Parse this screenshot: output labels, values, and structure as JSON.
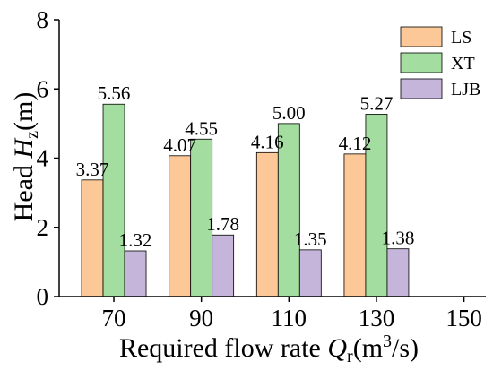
{
  "chart_data": {
    "type": "bar",
    "categories": [
      "70",
      "90",
      "110",
      "130"
    ],
    "x_ticks": [
      "70",
      "90",
      "110",
      "130",
      "150"
    ],
    "x_range": [
      57.5,
      155
    ],
    "series": [
      {
        "name": "LS",
        "values": [
          3.37,
          4.07,
          4.16,
          4.12
        ],
        "color": "#FDC898"
      },
      {
        "name": "XT",
        "values": [
          5.56,
          4.55,
          5.0,
          5.27
        ],
        "color": "#A3DEA0"
      },
      {
        "name": "LJB",
        "values": [
          1.32,
          1.78,
          1.35,
          1.38
        ],
        "color": "#C5B5DA"
      }
    ],
    "data_labels": [
      [
        "3.37",
        "4.07",
        "4.16",
        "4.12"
      ],
      [
        "5.56",
        "4.55",
        "5.00",
        "5.27"
      ],
      [
        "1.32",
        "1.78",
        "1.35",
        "1.38"
      ]
    ],
    "y_ticks": [
      "0",
      "2",
      "4",
      "6",
      "8"
    ],
    "ylim": [
      0,
      8
    ],
    "ylabel": {
      "prefix": "Head ",
      "var": "H",
      "sub": "z",
      "suffix": "(m)"
    },
    "xlabel": {
      "prefix": "Required flow rate ",
      "var": "Q",
      "sub": "r",
      "unit_a": "(m",
      "sup": "3",
      "unit_b": "/s)"
    },
    "legend_position": "top-right",
    "grid": false
  }
}
